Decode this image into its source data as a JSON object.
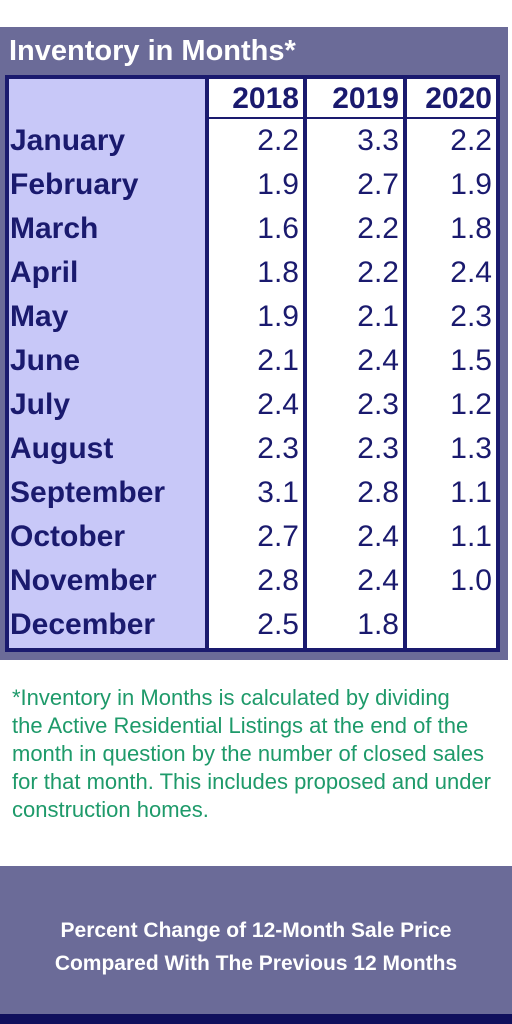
{
  "inventory": {
    "title": "Inventory in Months*",
    "years": [
      "2018",
      "2019",
      "2020"
    ],
    "rows": [
      {
        "month": "January",
        "values": [
          "2.2",
          "3.3",
          "2.2"
        ]
      },
      {
        "month": "February",
        "values": [
          "1.9",
          "2.7",
          "1.9"
        ]
      },
      {
        "month": "March",
        "values": [
          "1.6",
          "2.2",
          "1.8"
        ]
      },
      {
        "month": "April",
        "values": [
          "1.8",
          "2.2",
          "2.4"
        ]
      },
      {
        "month": "May",
        "values": [
          "1.9",
          "2.1",
          "2.3"
        ]
      },
      {
        "month": "June",
        "values": [
          "2.1",
          "2.4",
          "1.5"
        ]
      },
      {
        "month": "July",
        "values": [
          "2.4",
          "2.3",
          "1.2"
        ]
      },
      {
        "month": "August",
        "values": [
          "2.3",
          "2.3",
          "1.3"
        ]
      },
      {
        "month": "September",
        "values": [
          "3.1",
          "2.8",
          "1.1"
        ]
      },
      {
        "month": "October",
        "values": [
          "2.7",
          "2.4",
          "1.1"
        ]
      },
      {
        "month": "November",
        "values": [
          "2.8",
          "2.4",
          "1.0"
        ]
      },
      {
        "month": "December",
        "values": [
          "2.5",
          "1.8",
          ""
        ]
      }
    ]
  },
  "footnote": {
    "lines": [
      "*Inventory in Months is calculated by dividing",
      "the Active Residential Listings at the end of the",
      "month in question by the number of closed sales",
      "for that month. This includes proposed and under",
      "construction homes."
    ]
  },
  "percent_change": {
    "title_lines": [
      "Percent Change of 12-Month Sale Price",
      "Compared With The Previous 12 Months"
    ]
  },
  "colors": {
    "panel": "#6b6b98",
    "navy": "#1a1a6e",
    "month_column": "#c8c8f8",
    "footnote_text": "#1e9a6a"
  }
}
